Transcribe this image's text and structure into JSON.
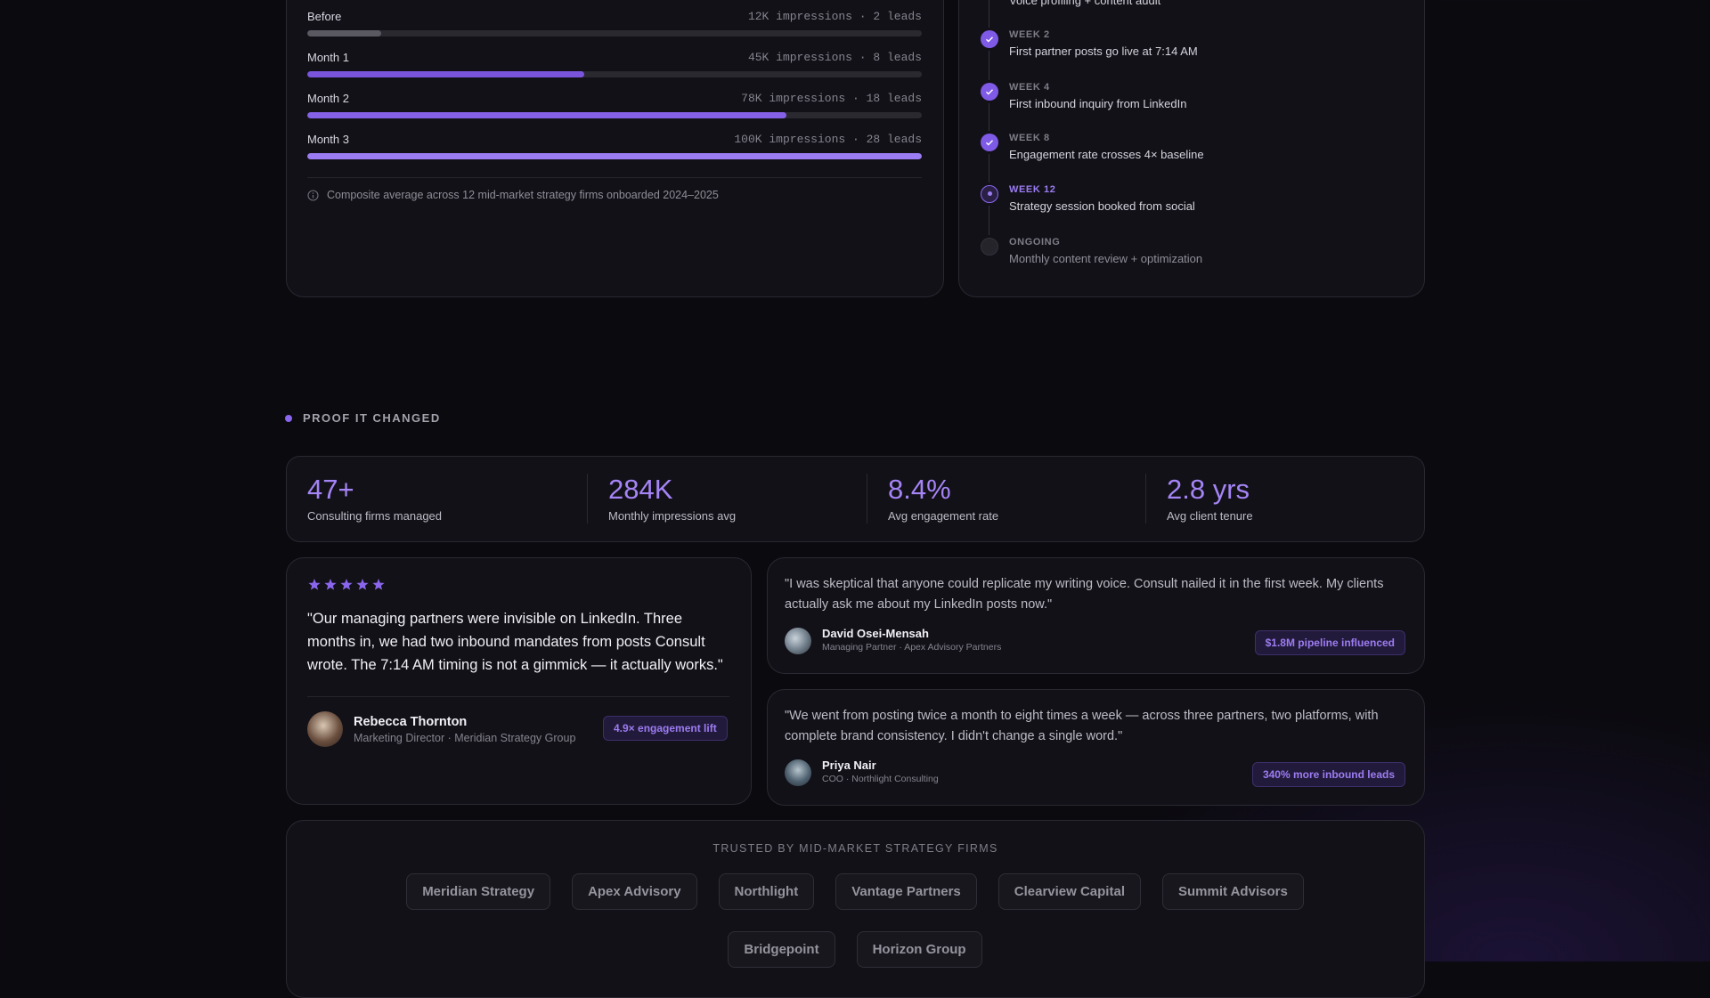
{
  "growth": {
    "rows": [
      {
        "label": "Before",
        "stats": "12K impressions · 2 leads",
        "impressions": 12000,
        "color": "#5a5962"
      },
      {
        "label": "Month 1",
        "stats": "45K impressions · 8 leads",
        "impressions": 45000,
        "color": "#7a55dc"
      },
      {
        "label": "Month 2",
        "stats": "78K impressions · 18 leads",
        "impressions": 78000,
        "color": "#8461e6"
      },
      {
        "label": "Month 3",
        "stats": "100K impressions · 28 leads",
        "impressions": 100000,
        "color": "#9b7cf2"
      }
    ],
    "note": "Composite average across 12 mid-market strategy firms onboarded 2024–2025"
  },
  "timeline": {
    "items": [
      {
        "text": "Voice profiling + content audit",
        "status": "done"
      },
      {
        "week": "WEEK 2",
        "text": "First partner posts go live at 7:14 AM",
        "status": "done"
      },
      {
        "week": "WEEK 4",
        "text": "First inbound inquiry from LinkedIn",
        "status": "done"
      },
      {
        "week": "WEEK 8",
        "text": "Engagement rate crosses 4× baseline",
        "status": "done"
      },
      {
        "week": "WEEK 12",
        "text": "Strategy session booked from social",
        "status": "current"
      },
      {
        "week": "ONGOING",
        "text": "Monthly content review + optimization",
        "status": "pending"
      }
    ]
  },
  "proof": {
    "eyebrow": "PROOF IT CHANGED",
    "stats": [
      {
        "value": "47+",
        "label": "Consulting firms managed"
      },
      {
        "value": "284K",
        "label": "Monthly impressions avg"
      },
      {
        "value": "8.4%",
        "label": "Avg engagement rate"
      },
      {
        "value": "2.8 yrs",
        "label": "Avg client tenure"
      }
    ]
  },
  "featured": {
    "quote": "\"Our managing partners were invisible on LinkedIn. Three months in, we had two inbound mandates from posts Consult wrote. The 7:14 AM timing is not a gimmick — it actually works.\"",
    "name": "Rebecca Thornton",
    "role": "Marketing Director · Meridian Strategy Group",
    "badge": "4.9× engagement lift"
  },
  "testimonials": [
    {
      "quote": "\"I was skeptical that anyone could replicate my writing voice. Consult nailed it in the first week. My clients actually ask me about my LinkedIn posts now.\"",
      "name": "David Osei-Mensah",
      "role": "Managing Partner · Apex Advisory Partners",
      "badge": "$1.8M pipeline influenced"
    },
    {
      "quote": "\"We went from posting twice a month to eight times a week — across three partners, two platforms, with complete brand consistency. I didn't change a single word.\"",
      "name": "Priya Nair",
      "role": "COO · Northlight Consulting",
      "badge": "340% more inbound leads"
    }
  ],
  "trusted": {
    "title": "TRUSTED BY MID-MARKET STRATEGY FIRMS",
    "firms": [
      "Meridian Strategy",
      "Apex Advisory",
      "Northlight",
      "Vantage Partners",
      "Clearview Capital",
      "Summit Advisors",
      "Bridgepoint",
      "Horizon Group"
    ]
  }
}
